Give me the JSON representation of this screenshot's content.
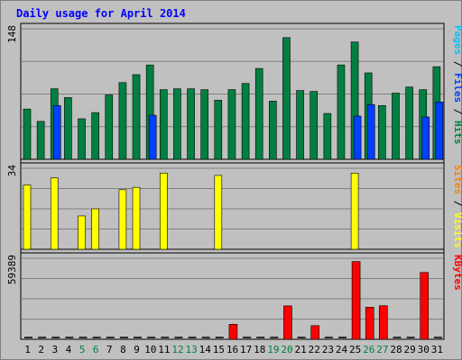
{
  "chart_data": [
    {
      "type": "bar",
      "panel": "hits-files-pages",
      "title": "Daily usage for April 2014",
      "categories": [
        "1",
        "2",
        "3",
        "4",
        "5",
        "6",
        "7",
        "8",
        "9",
        "10",
        "11",
        "12",
        "13",
        "14",
        "15",
        "16",
        "17",
        "18",
        "19",
        "20",
        "21",
        "22",
        "23",
        "24",
        "25",
        "26",
        "27",
        "28",
        "29",
        "30",
        "31"
      ],
      "weekend_days": [
        "5",
        "6",
        "12",
        "13",
        "19",
        "20",
        "26",
        "27"
      ],
      "ylim": [
        0,
        148
      ],
      "y_tick_label": "148",
      "right_label_parts": [
        "Pages",
        "Files",
        "Hits"
      ],
      "series": [
        {
          "name": "Hits",
          "color": "#008040",
          "values": [
            57,
            43,
            80,
            70,
            46,
            53,
            73,
            87,
            96,
            107,
            79,
            80,
            80,
            79,
            67,
            79,
            86,
            103,
            66,
            138,
            78,
            77,
            52,
            107,
            133,
            98,
            61,
            75,
            82,
            79,
            105
          ]
        },
        {
          "name": "Files",
          "color": "#0040ff",
          "values": [
            0,
            0,
            61,
            0,
            0,
            0,
            0,
            0,
            0,
            50,
            0,
            0,
            0,
            0,
            0,
            0,
            0,
            0,
            0,
            0,
            0,
            0,
            0,
            0,
            49,
            62,
            0,
            0,
            0,
            48,
            65
          ]
        },
        {
          "name": "Pages",
          "color": "#00c0ff",
          "values": [
            0,
            0,
            0,
            0,
            0,
            0,
            0,
            0,
            0,
            0,
            0,
            0,
            0,
            0,
            0,
            0,
            0,
            0,
            0,
            0,
            0,
            0,
            0,
            0,
            0,
            0,
            0,
            0,
            0,
            0,
            0
          ]
        }
      ]
    },
    {
      "type": "bar",
      "panel": "visits-sites",
      "categories": [
        "1",
        "2",
        "3",
        "4",
        "5",
        "6",
        "7",
        "8",
        "9",
        "10",
        "11",
        "12",
        "13",
        "14",
        "15",
        "16",
        "17",
        "18",
        "19",
        "20",
        "21",
        "22",
        "23",
        "24",
        "25",
        "26",
        "27",
        "28",
        "29",
        "30",
        "31"
      ],
      "ylim": [
        0,
        34
      ],
      "y_tick_label": "34",
      "right_label_parts": [
        "Sites",
        "Visits"
      ],
      "series": [
        {
          "name": "Visits",
          "color": "#ffff00",
          "values": [
            27,
            0,
            30,
            0,
            14,
            17,
            0,
            25,
            26,
            0,
            32,
            0,
            0,
            0,
            31,
            0,
            0,
            0,
            0,
            0,
            0,
            0,
            0,
            0,
            32,
            0,
            0,
            0,
            0,
            0,
            0
          ]
        },
        {
          "name": "Sites",
          "color": "#ff8000",
          "values": [
            0,
            0,
            0,
            0,
            0,
            0,
            0,
            0,
            0,
            0,
            0,
            0,
            0,
            0,
            0,
            0,
            0,
            0,
            0,
            0,
            0,
            0,
            0,
            0,
            0,
            0,
            0,
            0,
            0,
            0,
            0
          ]
        }
      ]
    },
    {
      "type": "bar",
      "panel": "kbytes",
      "categories": [
        "1",
        "2",
        "3",
        "4",
        "5",
        "6",
        "7",
        "8",
        "9",
        "10",
        "11",
        "12",
        "13",
        "14",
        "15",
        "16",
        "17",
        "18",
        "19",
        "20",
        "21",
        "22",
        "23",
        "24",
        "25",
        "26",
        "27",
        "28",
        "29",
        "30",
        "31"
      ],
      "ylim": [
        0,
        59389
      ],
      "y_tick_label": "59389",
      "right_label_parts": [
        "KBytes"
      ],
      "series": [
        {
          "name": "KBytes",
          "color": "#ff0000",
          "values": [
            0,
            0,
            0,
            0,
            0,
            0,
            0,
            0,
            0,
            0,
            0,
            0,
            0,
            0,
            0,
            11000,
            0,
            0,
            0,
            24500,
            0,
            10000,
            0,
            0,
            57000,
            23500,
            24600,
            0,
            0,
            49000,
            0
          ]
        }
      ]
    }
  ]
}
